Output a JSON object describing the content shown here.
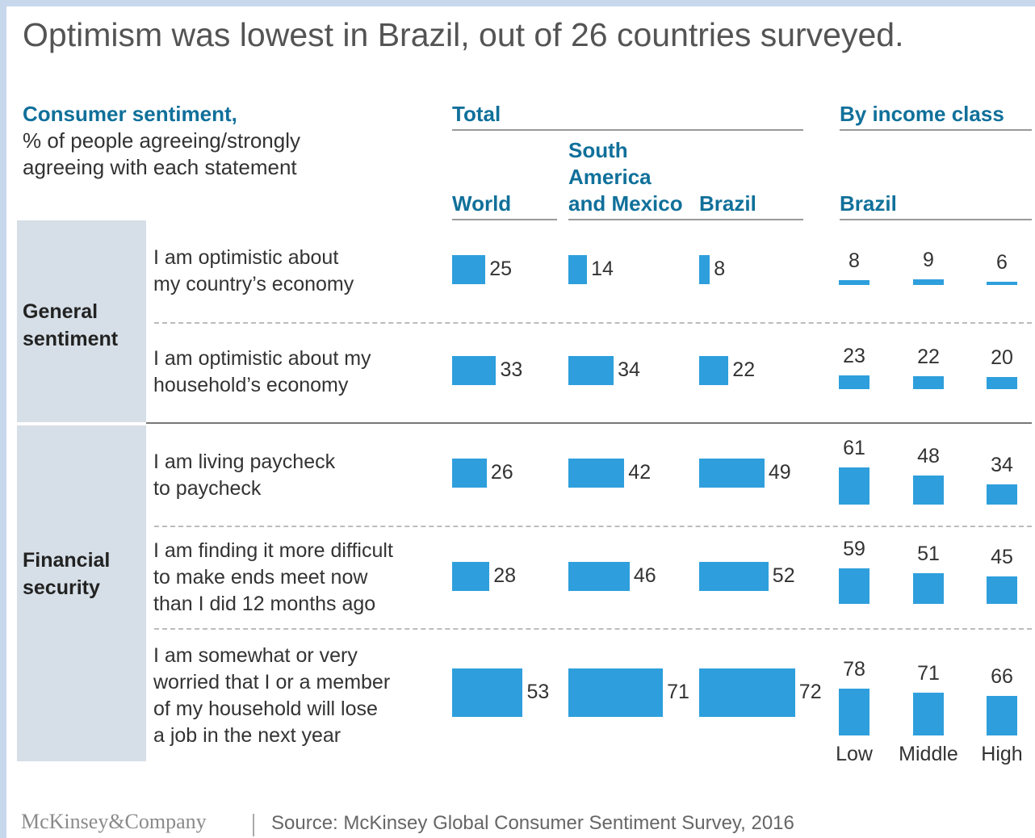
{
  "title": "Optimism was lowest in Brazil, out of 26 countries surveyed.",
  "subtitle": {
    "heading": "Consumer sentiment,",
    "line1": "% of people agreeing/strongly",
    "line2": "agreeing with each statement"
  },
  "headers": {
    "total": "Total",
    "by_income": "By income class",
    "world": "World",
    "sam_line1": "South",
    "sam_line2": "America",
    "sam_line3": "and Mexico",
    "brazil": "Brazil",
    "brazil_income": "Brazil"
  },
  "categories": {
    "general_line1": "General",
    "general_line2": "sentiment",
    "financial_line1": "Financial",
    "financial_line2": "security"
  },
  "statements": {
    "s1": [
      "I am optimistic about",
      "my country’s economy"
    ],
    "s2": [
      "I am optimistic about my",
      "household’s economy"
    ],
    "s3": [
      "I am living paycheck",
      "to paycheck"
    ],
    "s4": [
      "I am finding it more difficult",
      "to make ends meet now",
      "than I did 12 months ago"
    ],
    "s5": [
      "I am somewhat or very",
      "worried that I or a member",
      "of my household will lose",
      "a job in the next year"
    ]
  },
  "income_labels": {
    "low": "Low",
    "middle": "Middle",
    "high": "High"
  },
  "footer": {
    "logo": "McKinsey&Company",
    "source": "Source: McKinsey Global Consumer Sentiment Survey, 2016"
  },
  "colors": {
    "bar": "#2e9fdc",
    "accent": "#10709a",
    "category_bg": "#d6dfe7"
  },
  "chart_data": {
    "type": "bar",
    "unit": "%",
    "statements": [
      "I am optimistic about my country’s economy",
      "I am optimistic about my household’s economy",
      "I am living paycheck to paycheck",
      "I am finding it more difficult to make ends meet now than I did 12 months ago",
      "I am somewhat or very worried that I or a member of my household will lose a job in the next year"
    ],
    "groups": [
      "General sentiment",
      "General sentiment",
      "Financial security",
      "Financial security",
      "Financial security"
    ],
    "total": {
      "series": [
        {
          "name": "World",
          "values": [
            25,
            33,
            26,
            28,
            53
          ]
        },
        {
          "name": "South America and Mexico",
          "values": [
            14,
            34,
            42,
            46,
            71
          ]
        },
        {
          "name": "Brazil",
          "values": [
            8,
            22,
            49,
            52,
            72
          ]
        }
      ]
    },
    "by_income_class_brazil": {
      "series": [
        {
          "name": "Low",
          "values": [
            8,
            23,
            61,
            59,
            78
          ]
        },
        {
          "name": "Middle",
          "values": [
            9,
            22,
            48,
            51,
            71
          ]
        },
        {
          "name": "High",
          "values": [
            6,
            20,
            34,
            45,
            66
          ]
        }
      ]
    }
  }
}
